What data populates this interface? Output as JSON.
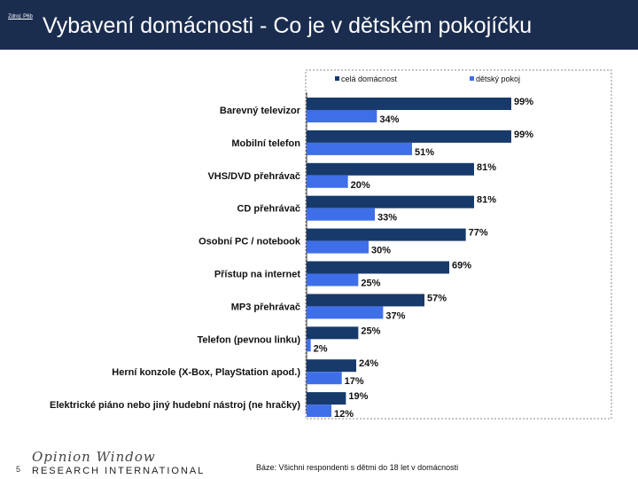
{
  "header": {
    "source_label": "Zdroj: P6b",
    "title": "Vybavení domácnosti - Co je v dětském pokojíčku"
  },
  "footer": {
    "page_number": "5",
    "logo_line1": "Opinion Window",
    "logo_line2": "RESEARCH INTERNATIONAL",
    "basis": "Báze: Všichni respondenti s dětmi do 18 let v domácnosti"
  },
  "colors": {
    "header_bg": "#1b2d4f",
    "series_household": "#183a6b",
    "series_kidsroom": "#3f6fe8"
  },
  "chart_data": {
    "type": "bar",
    "orientation": "horizontal",
    "categories": [
      "Barevný televizor",
      "Mobilní telefon",
      "VHS/DVD přehrávač",
      "CD přehrávač",
      "Osobní PC / notebook",
      "Přístup na internet",
      "MP3 přehrávač",
      "Telefon (pevnou linku)",
      "Herní konzole (X-Box, PlayStation apod.)",
      "Elektrické piáno nebo jiný hudební nástroj (ne hračky)"
    ],
    "series": [
      {
        "name": "celá domácnost",
        "values": [
          99,
          99,
          81,
          81,
          77,
          69,
          57,
          25,
          24,
          19
        ]
      },
      {
        "name": "dětský pokoj",
        "values": [
          34,
          51,
          20,
          33,
          30,
          25,
          37,
          2,
          17,
          12
        ]
      }
    ],
    "value_labels": [
      [
        "99%",
        "99%",
        "81%",
        "81%",
        "77%",
        "69%",
        "57%",
        "25%",
        "24%",
        "19%"
      ],
      [
        "34%",
        "51%",
        "20%",
        "33%",
        "30%",
        "25%",
        "37%",
        "2%",
        "17%",
        "12%"
      ]
    ],
    "xlim": [
      0,
      100
    ],
    "legend_position": "top",
    "grid": false
  }
}
